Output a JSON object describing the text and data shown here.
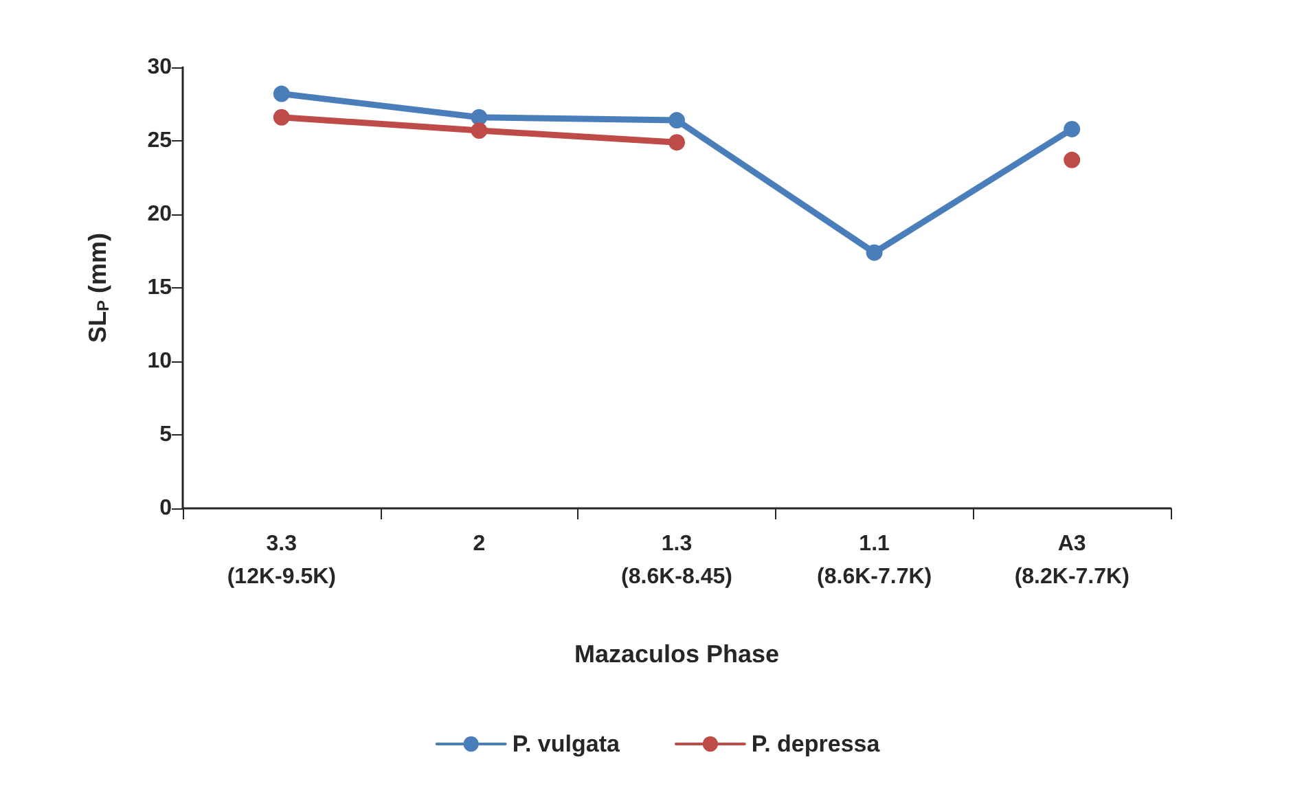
{
  "chart_data": {
    "type": "line",
    "xlabel": "Mazaculos Phase",
    "ylabel": "SL$_{P}$ (mm)",
    "categories": [
      "3.3\n(12K-9.5K)",
      "2",
      "1.3\n(8.6K-8.45)",
      "1.1\n(8.6K-7.7K)",
      "A3\n(8.2K-7.7K)"
    ],
    "series": [
      {
        "name": "P. vulgata",
        "color": "#4a7ebb",
        "values": [
          28.2,
          26.6,
          26.4,
          17.4,
          25.8
        ]
      },
      {
        "name": "P. depressa",
        "color": "#be4b48",
        "values": [
          26.6,
          25.7,
          24.9,
          null,
          23.7
        ]
      }
    ],
    "ylim": [
      0,
      30
    ],
    "yticks": [
      0,
      5,
      10,
      15,
      20,
      25,
      30
    ],
    "grid": false,
    "legend": "bottom",
    "marker": "circle",
    "line_style": "solid"
  }
}
